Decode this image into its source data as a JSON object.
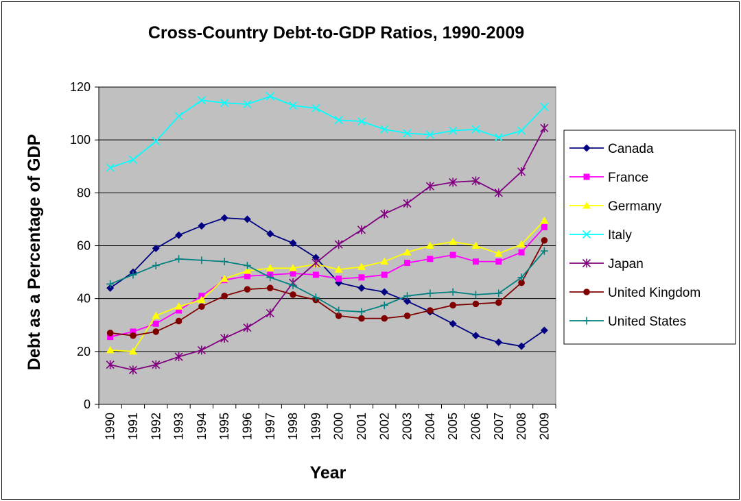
{
  "chart_data": {
    "type": "line",
    "title": "Cross-Country Debt-to-GDP Ratios, 1990-2009",
    "xlabel": "Year",
    "ylabel": "Debt as a Percentage of GDP",
    "ylim": [
      0,
      120
    ],
    "yticks": [
      0,
      20,
      40,
      60,
      80,
      100,
      120
    ],
    "grid": true,
    "legend_position": "right",
    "plot_background": "#c0c0c0",
    "categories": [
      "1990",
      "1991",
      "1992",
      "1993",
      "1994",
      "1995",
      "1996",
      "1997",
      "1998",
      "1999",
      "2000",
      "2001",
      "2002",
      "2003",
      "2004",
      "2005",
      "2006",
      "2007",
      "2008",
      "2009"
    ],
    "series": [
      {
        "name": "Canada",
        "color": "#000080",
        "marker": "diamond",
        "values": [
          44,
          50,
          59,
          64,
          67.5,
          70.5,
          70,
          64.5,
          61,
          55.5,
          46,
          44,
          42.5,
          39,
          35,
          30.5,
          26,
          23.5,
          22,
          28
        ]
      },
      {
        "name": "France",
        "color": "#ff00ff",
        "marker": "square",
        "values": [
          25.5,
          27.5,
          30.5,
          35.5,
          41,
          47,
          48.5,
          49,
          49.5,
          49,
          47.5,
          48,
          49,
          53.5,
          55,
          56.5,
          54,
          54,
          57.5,
          67
        ]
      },
      {
        "name": "Germany",
        "color": "#ffff00",
        "marker": "triangle",
        "values": [
          20.5,
          20,
          33.5,
          37,
          39.5,
          47.5,
          50.5,
          51.5,
          51.5,
          53,
          51,
          52,
          54,
          57.5,
          60,
          61.5,
          60,
          57,
          60.5,
          69.5
        ]
      },
      {
        "name": "Italy",
        "color": "#00ffff",
        "marker": "x",
        "values": [
          89.5,
          92.5,
          99.5,
          109,
          115,
          114,
          113.5,
          116.5,
          113,
          112,
          107.5,
          107,
          104,
          102.5,
          102,
          103.5,
          104,
          101,
          103.5,
          112.5
        ]
      },
      {
        "name": "Japan",
        "color": "#800080",
        "marker": "star",
        "values": [
          15,
          13,
          15,
          18,
          20.5,
          25,
          29,
          34.5,
          46,
          53.5,
          60.5,
          66,
          72,
          76,
          82.5,
          84,
          84.5,
          80,
          88,
          104.5
        ]
      },
      {
        "name": "United Kingdom",
        "color": "#800000",
        "marker": "circle",
        "values": [
          27,
          26,
          27.5,
          31.5,
          37,
          41,
          43.5,
          44,
          41.5,
          39.5,
          33.5,
          32.5,
          32.5,
          33.5,
          35.5,
          37.5,
          38,
          38.5,
          46,
          62
        ]
      },
      {
        "name": "United States",
        "color": "#008080",
        "marker": "plus",
        "values": [
          45.5,
          49,
          52.5,
          55,
          54.5,
          54,
          52.5,
          48,
          45,
          40.5,
          35.5,
          35,
          37.5,
          41,
          42,
          42.5,
          41.5,
          42,
          48,
          58
        ]
      }
    ]
  }
}
